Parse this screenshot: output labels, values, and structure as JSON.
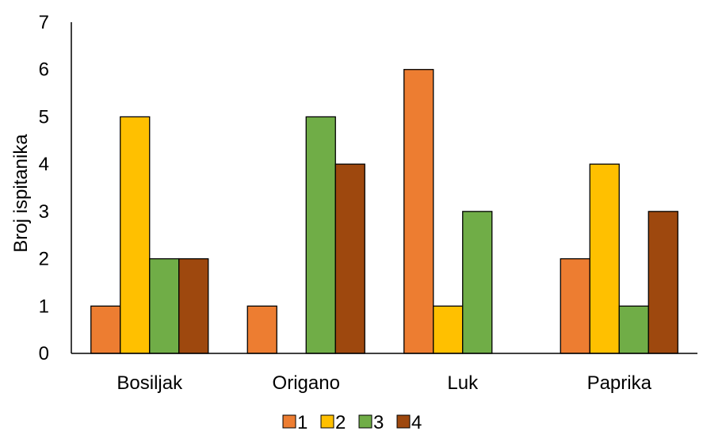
{
  "chart_data": {
    "type": "bar",
    "title": "",
    "xlabel": "",
    "ylabel": "Broj ispitanika",
    "ylim": [
      0,
      7
    ],
    "yticks": [
      0,
      1,
      2,
      3,
      4,
      5,
      6,
      7
    ],
    "grid": false,
    "legend_position": "bottom",
    "categories": [
      "Bosiljak",
      "Origano",
      "Luk",
      "Paprika"
    ],
    "series": [
      {
        "name": "1",
        "color": "#ED7D31",
        "values": [
          1,
          1,
          6,
          2
        ]
      },
      {
        "name": "2",
        "color": "#FFC000",
        "values": [
          5,
          0,
          1,
          4
        ]
      },
      {
        "name": "3",
        "color": "#70AD47",
        "values": [
          2,
          5,
          3,
          1
        ]
      },
      {
        "name": "4",
        "color": "#9E480E",
        "values": [
          2,
          4,
          0,
          3
        ]
      }
    ]
  }
}
